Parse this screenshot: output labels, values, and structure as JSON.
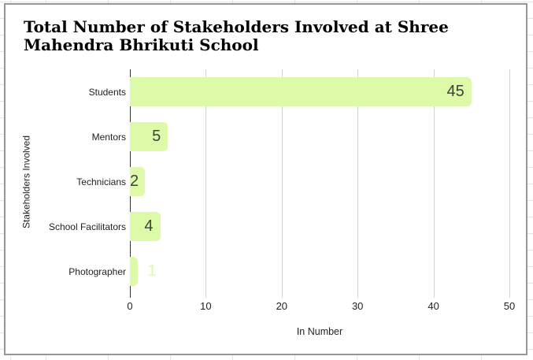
{
  "chart_data": {
    "type": "bar",
    "orientation": "horizontal",
    "title": "Total Number of Stakeholders Involved at Shree Mahendra Bhrikuti School",
    "categories": [
      "Students",
      "Mentors",
      "Technicians",
      "School Facilitators",
      "Photographer"
    ],
    "values": [
      45,
      5,
      2,
      4,
      1
    ],
    "xlabel": "In Number",
    "ylabel": "Stakeholders Involved",
    "xlim": [
      0,
      50
    ],
    "xticks": [
      0,
      10,
      20,
      30,
      40,
      50
    ],
    "grid": true,
    "legend_position": "none",
    "bar_color": "#ddfaa8",
    "annotation_color": "#404040",
    "gridline_color": "#d4d4d4",
    "axis_color": "#333333"
  }
}
